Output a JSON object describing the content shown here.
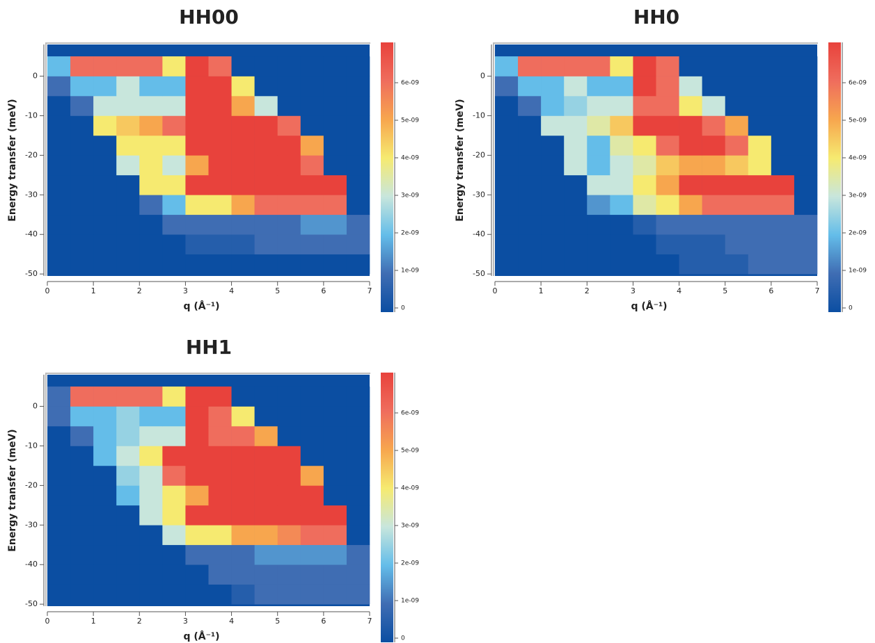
{
  "chart_data": [
    {
      "type": "heatmap",
      "title": "HH00",
      "xlabel": "q (Å⁻¹)",
      "ylabel": "Energy transfer (meV)",
      "x": [
        0,
        0.5,
        1,
        1.5,
        2,
        2.5,
        3,
        3.5,
        4,
        4.5,
        5,
        5.5,
        6,
        6.5,
        7
      ],
      "y": [
        -50,
        -45,
        -40,
        -35,
        -30,
        -25,
        -20,
        -15,
        -10,
        -5,
        0,
        5
      ],
      "values": [
        [
          0,
          0,
          0,
          0,
          0,
          0,
          0,
          0,
          0,
          0,
          0,
          0,
          0,
          0
        ],
        [
          0,
          0,
          0,
          0,
          0,
          0,
          5e-10,
          5e-10,
          5e-10,
          1e-09,
          1e-09,
          1e-09,
          1e-09,
          1e-09
        ],
        [
          0,
          0,
          0,
          0,
          0,
          1e-09,
          1e-09,
          1e-09,
          1e-09,
          1e-09,
          1e-09,
          1.5e-09,
          1.5e-09,
          1e-09
        ],
        [
          0,
          0,
          0,
          0,
          1e-09,
          2e-09,
          4e-09,
          4e-09,
          5e-09,
          6e-09,
          6e-09,
          6e-09,
          6e-09,
          0
        ],
        [
          0,
          0,
          0,
          0,
          4e-09,
          4e-09,
          7e-09,
          7e-09,
          7e-09,
          7e-09,
          7e-09,
          7e-09,
          7e-09,
          0
        ],
        [
          0,
          0,
          0,
          3e-09,
          4e-09,
          3e-09,
          5e-09,
          7e-09,
          7e-09,
          7e-09,
          7e-09,
          6e-09,
          0,
          0
        ],
        [
          0,
          0,
          0,
          4e-09,
          4e-09,
          4e-09,
          7e-09,
          7e-09,
          7e-09,
          7e-09,
          7e-09,
          5e-09,
          0,
          0
        ],
        [
          0,
          0,
          4e-09,
          4.5e-09,
          5e-09,
          6e-09,
          7e-09,
          7e-09,
          7e-09,
          7e-09,
          6e-09,
          0,
          0,
          0
        ],
        [
          0,
          1e-09,
          3e-09,
          3e-09,
          3e-09,
          3e-09,
          7e-09,
          7e-09,
          5e-09,
          3e-09,
          0,
          0,
          0,
          0
        ],
        [
          1e-09,
          2e-09,
          2e-09,
          3e-09,
          2e-09,
          2e-09,
          7e-09,
          7e-09,
          4e-09,
          0,
          0,
          0,
          0,
          0
        ],
        [
          2e-09,
          6e-09,
          6e-09,
          6e-09,
          6e-09,
          4e-09,
          7e-09,
          6e-09,
          0,
          0,
          0,
          0,
          0,
          0
        ]
      ],
      "xlim": [
        0,
        7
      ],
      "ylim": [
        -50.5,
        8
      ],
      "xticks": [
        0,
        1,
        2,
        3,
        4,
        5,
        6,
        7
      ],
      "yticks": [
        -50,
        -40,
        -30,
        -20,
        -10,
        0
      ],
      "zlim": [
        0,
        7e-09
      ],
      "zticks": [
        0,
        {
          "value": 1e-09,
          "label": "1e-09"
        },
        {
          "value": 2e-09,
          "label": "2e-09"
        },
        {
          "value": 3e-09,
          "label": "3e-09"
        },
        {
          "value": 4e-09,
          "label": "4e-09"
        },
        {
          "value": 5e-09,
          "label": "5e-09"
        },
        {
          "value": 6e-09,
          "label": "6e-09"
        }
      ],
      "colormap": [
        "#0b4ea2",
        "#3f6db3",
        "#64bde9",
        "#c8e6dc",
        "#f6ea70",
        "#f7a64e",
        "#ef6d5d",
        "#e8423c"
      ]
    },
    {
      "type": "heatmap",
      "title": "HH0",
      "xlabel": "q (Å⁻¹)",
      "ylabel": "Energy transfer (meV)",
      "x": [
        0,
        0.5,
        1,
        1.5,
        2,
        2.5,
        3,
        3.5,
        4,
        4.5,
        5,
        5.5,
        6,
        6.5,
        7
      ],
      "y": [
        -50,
        -45,
        -40,
        -35,
        -30,
        -25,
        -20,
        -15,
        -10,
        -5,
        0,
        5
      ],
      "values": [
        [
          0,
          0,
          0,
          0,
          0,
          0,
          0,
          0,
          5e-10,
          5e-10,
          5e-10,
          1e-09,
          1e-09,
          1e-09
        ],
        [
          0,
          0,
          0,
          0,
          0,
          0,
          0,
          5e-10,
          5e-10,
          5e-10,
          1e-09,
          1e-09,
          1e-09,
          1e-09
        ],
        [
          0,
          0,
          0,
          0,
          0,
          0,
          5e-10,
          1e-09,
          1e-09,
          1e-09,
          1e-09,
          1e-09,
          1e-09,
          1e-09
        ],
        [
          0,
          0,
          0,
          0,
          1.5e-09,
          2e-09,
          3.5e-09,
          4e-09,
          5e-09,
          6e-09,
          6e-09,
          6e-09,
          6e-09,
          0
        ],
        [
          0,
          0,
          0,
          0,
          3e-09,
          3e-09,
          4e-09,
          5e-09,
          7e-09,
          7e-09,
          7e-09,
          7e-09,
          7e-09,
          0
        ],
        [
          0,
          0,
          0,
          3e-09,
          2e-09,
          3e-09,
          3.5e-09,
          4.5e-09,
          5e-09,
          5e-09,
          4.5e-09,
          4e-09,
          0,
          0
        ],
        [
          0,
          0,
          0,
          3e-09,
          2e-09,
          3.5e-09,
          4e-09,
          6e-09,
          7e-09,
          7e-09,
          6e-09,
          4e-09,
          0,
          0
        ],
        [
          0,
          0,
          3e-09,
          3e-09,
          3.5e-09,
          4.5e-09,
          7e-09,
          7e-09,
          7e-09,
          6e-09,
          5e-09,
          0,
          0,
          0
        ],
        [
          0,
          1e-09,
          2e-09,
          2.5e-09,
          3e-09,
          3e-09,
          6e-09,
          6e-09,
          4e-09,
          3e-09,
          0,
          0,
          0,
          0
        ],
        [
          1e-09,
          2e-09,
          2e-09,
          3e-09,
          2e-09,
          2e-09,
          7e-09,
          6e-09,
          3e-09,
          0,
          0,
          0,
          0,
          0
        ],
        [
          2e-09,
          6e-09,
          6e-09,
          6e-09,
          6e-09,
          4e-09,
          7e-09,
          6e-09,
          0,
          0,
          0,
          0,
          0,
          0
        ]
      ],
      "xlim": [
        0,
        7
      ],
      "ylim": [
        -50.5,
        8
      ],
      "xticks": [
        0,
        1,
        2,
        3,
        4,
        5,
        6,
        7
      ],
      "yticks": [
        -50,
        -40,
        -30,
        -20,
        -10,
        0
      ],
      "zlim": [
        0,
        7e-09
      ],
      "zticks": [
        0,
        {
          "value": 1e-09,
          "label": "1e-09"
        },
        {
          "value": 2e-09,
          "label": "2e-09"
        },
        {
          "value": 3e-09,
          "label": "3e-09"
        },
        {
          "value": 4e-09,
          "label": "4e-09"
        },
        {
          "value": 5e-09,
          "label": "5e-09"
        },
        {
          "value": 6e-09,
          "label": "6e-09"
        }
      ],
      "colormap": [
        "#0b4ea2",
        "#3f6db3",
        "#64bde9",
        "#c8e6dc",
        "#f6ea70",
        "#f7a64e",
        "#ef6d5d",
        "#e8423c"
      ]
    },
    {
      "type": "heatmap",
      "title": "HH1",
      "xlabel": "q (Å⁻¹)",
      "ylabel": "Energy transfer (meV)",
      "x": [
        0,
        0.5,
        1,
        1.5,
        2,
        2.5,
        3,
        3.5,
        4,
        4.5,
        5,
        5.5,
        6,
        6.5,
        7
      ],
      "y": [
        -50,
        -45,
        -40,
        -35,
        -30,
        -25,
        -20,
        -15,
        -10,
        -5,
        0,
        5
      ],
      "values": [
        [
          0,
          0,
          0,
          0,
          0,
          0,
          0,
          0,
          5e-10,
          1e-09,
          1e-09,
          1e-09,
          1e-09,
          1e-09
        ],
        [
          0,
          0,
          0,
          0,
          0,
          0,
          0,
          1e-09,
          1e-09,
          1e-09,
          1e-09,
          1e-09,
          1e-09,
          1e-09
        ],
        [
          0,
          0,
          0,
          0,
          0,
          0,
          1e-09,
          1e-09,
          1e-09,
          1.5e-09,
          1.5e-09,
          1.5e-09,
          1.5e-09,
          1e-09
        ],
        [
          0,
          0,
          0,
          0,
          0,
          3e-09,
          4e-09,
          4e-09,
          5e-09,
          5e-09,
          5.5e-09,
          6e-09,
          6e-09,
          0
        ],
        [
          0,
          0,
          0,
          0,
          3e-09,
          4e-09,
          7e-09,
          7e-09,
          7e-09,
          7e-09,
          7e-09,
          7e-09,
          7e-09,
          0
        ],
        [
          0,
          0,
          0,
          2e-09,
          3e-09,
          4e-09,
          5e-09,
          7e-09,
          7e-09,
          7e-09,
          7e-09,
          7e-09,
          0,
          0
        ],
        [
          0,
          0,
          0,
          2.5e-09,
          3e-09,
          6e-09,
          7e-09,
          7e-09,
          7e-09,
          7e-09,
          7e-09,
          5e-09,
          0,
          0
        ],
        [
          0,
          0,
          2e-09,
          3e-09,
          4e-09,
          7e-09,
          7e-09,
          7e-09,
          7e-09,
          7e-09,
          7e-09,
          0,
          0,
          0
        ],
        [
          0,
          1e-09,
          2e-09,
          2.5e-09,
          3e-09,
          3e-09,
          7e-09,
          6e-09,
          6e-09,
          5e-09,
          0,
          0,
          0,
          0
        ],
        [
          1e-09,
          2e-09,
          2e-09,
          2.5e-09,
          2e-09,
          2e-09,
          7e-09,
          6e-09,
          4e-09,
          0,
          0,
          0,
          0,
          0
        ],
        [
          1e-09,
          6e-09,
          6e-09,
          6e-09,
          6e-09,
          4e-09,
          7e-09,
          7e-09,
          0,
          0,
          0,
          0,
          0,
          0
        ]
      ],
      "xlim": [
        0,
        7
      ],
      "ylim": [
        -50.5,
        8
      ],
      "xticks": [
        0,
        1,
        2,
        3,
        4,
        5,
        6,
        7
      ],
      "yticks": [
        -50,
        -40,
        -30,
        -20,
        -10,
        0
      ],
      "zlim": [
        0,
        7e-09
      ],
      "zticks": [
        0,
        {
          "value": 1e-09,
          "label": "1e-09"
        },
        {
          "value": 2e-09,
          "label": "2e-09"
        },
        {
          "value": 3e-09,
          "label": "3e-09"
        },
        {
          "value": 4e-09,
          "label": "4e-09"
        },
        {
          "value": 5e-09,
          "label": "5e-09"
        },
        {
          "value": 6e-09,
          "label": "6e-09"
        }
      ],
      "colormap": [
        "#0b4ea2",
        "#3f6db3",
        "#64bde9",
        "#c8e6dc",
        "#f6ea70",
        "#f7a64e",
        "#ef6d5d",
        "#e8423c"
      ]
    }
  ]
}
